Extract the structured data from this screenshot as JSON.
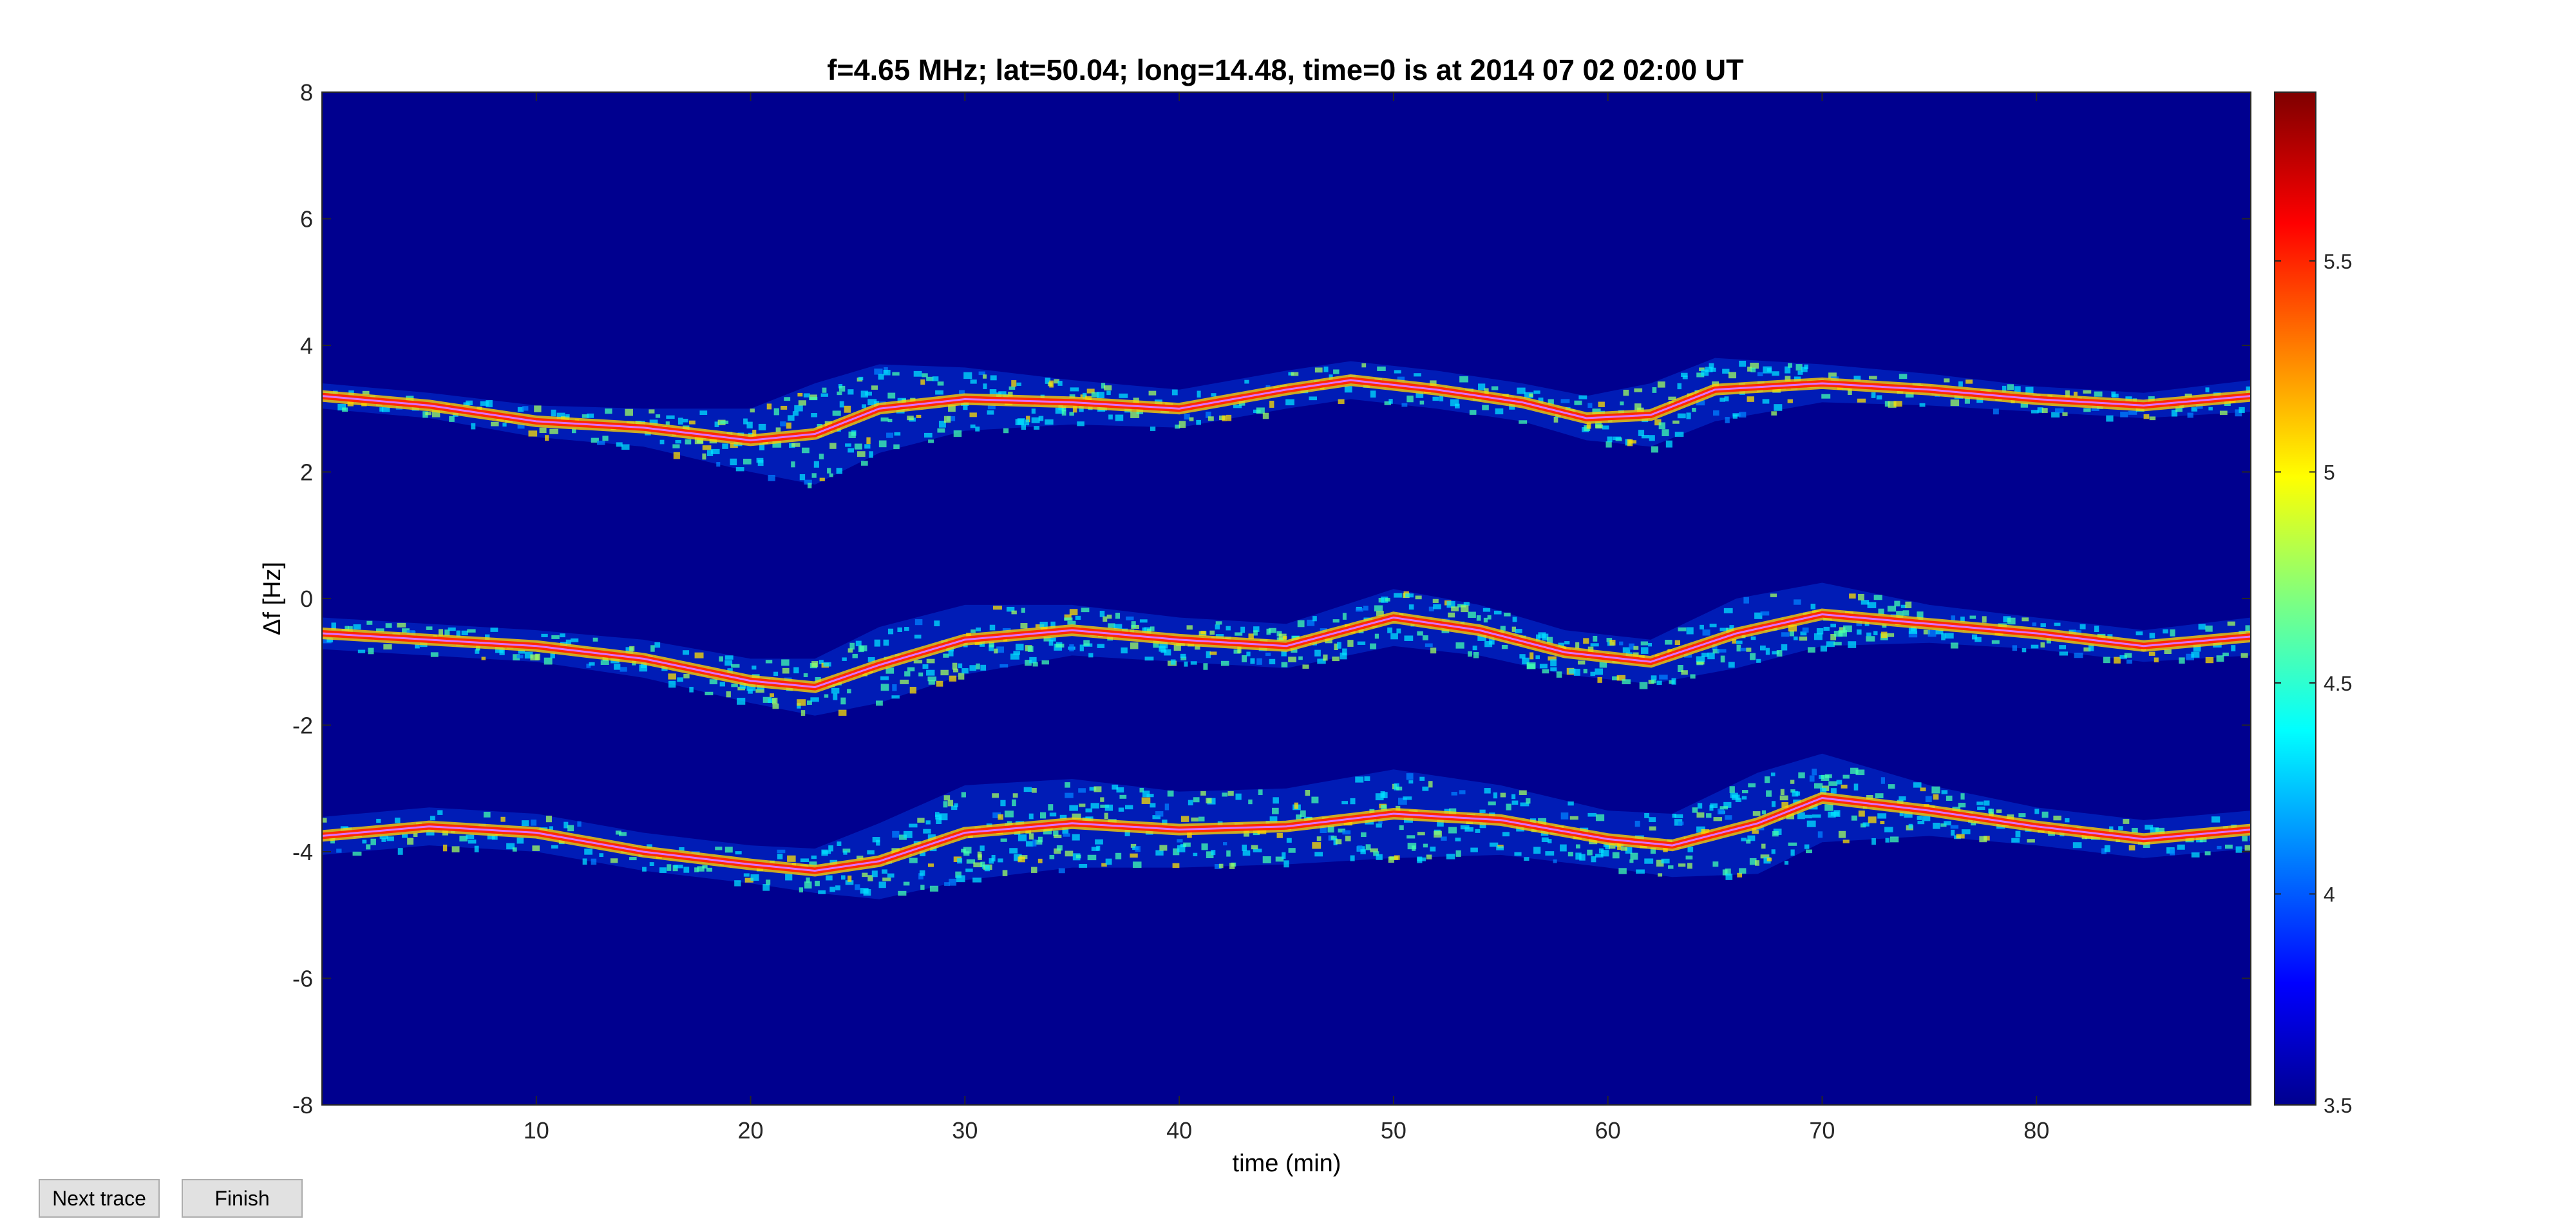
{
  "chart_data": {
    "type": "heatmap",
    "title": "f=4.65 MHz;  lat=50.04; long=14.48, time=0 is at 2014 07 02 02:00 UT",
    "xlabel": "time (min)",
    "ylabel": "Δf [Hz]",
    "xlim": [
      0,
      90
    ],
    "ylim": [
      -8,
      8
    ],
    "x_ticks": [
      10,
      20,
      30,
      40,
      50,
      60,
      70,
      80
    ],
    "y_ticks": [
      8,
      6,
      4,
      2,
      0,
      -2,
      -4,
      -6,
      -8
    ],
    "colorbar": {
      "range": [
        3.5,
        5.9
      ],
      "ticks": [
        "5.5",
        "5",
        "4.5",
        "4",
        "3.5"
      ],
      "colormap": "jet"
    },
    "background_color": "#00008f",
    "grid": false,
    "series": [
      {
        "traced_line": true,
        "x": [
          0,
          5,
          10,
          15,
          20,
          23,
          26,
          30,
          35,
          40,
          45,
          48,
          52,
          56,
          59,
          62,
          65,
          70,
          75,
          80,
          85,
          90
        ],
        "y": [
          3.2,
          3.05,
          2.8,
          2.7,
          2.5,
          2.6,
          3.0,
          3.15,
          3.1,
          3.0,
          3.3,
          3.45,
          3.3,
          3.1,
          2.85,
          2.9,
          3.3,
          3.4,
          3.3,
          3.15,
          3.05,
          3.2
        ],
        "spread": [
          0.2,
          0.2,
          0.25,
          0.3,
          0.5,
          0.8,
          0.7,
          0.5,
          0.35,
          0.3,
          0.3,
          0.3,
          0.3,
          0.3,
          0.35,
          0.5,
          0.5,
          0.3,
          0.25,
          0.2,
          0.2,
          0.25
        ]
      },
      {
        "traced_line": true,
        "x": [
          0,
          5,
          10,
          15,
          20,
          23,
          26,
          30,
          35,
          40,
          45,
          50,
          54,
          58,
          62,
          66,
          70,
          75,
          80,
          85,
          90
        ],
        "y": [
          -0.55,
          -0.65,
          -0.75,
          -0.95,
          -1.3,
          -1.4,
          -1.05,
          -0.65,
          -0.5,
          -0.65,
          -0.75,
          -0.3,
          -0.5,
          -0.85,
          -1.0,
          -0.55,
          -0.25,
          -0.4,
          -0.55,
          -0.75,
          -0.6
        ],
        "spread": [
          0.25,
          0.25,
          0.25,
          0.3,
          0.35,
          0.45,
          0.6,
          0.55,
          0.4,
          0.35,
          0.35,
          0.45,
          0.4,
          0.35,
          0.35,
          0.55,
          0.5,
          0.3,
          0.25,
          0.25,
          0.3
        ]
      },
      {
        "traced_line": true,
        "x": [
          0,
          5,
          10,
          15,
          20,
          23,
          26,
          30,
          35,
          40,
          45,
          50,
          55,
          60,
          63,
          67,
          70,
          75,
          80,
          85,
          90
        ],
        "y": [
          -3.75,
          -3.6,
          -3.7,
          -4.0,
          -4.2,
          -4.3,
          -4.15,
          -3.7,
          -3.55,
          -3.65,
          -3.6,
          -3.4,
          -3.5,
          -3.8,
          -3.9,
          -3.55,
          -3.15,
          -3.35,
          -3.6,
          -3.8,
          -3.65
        ],
        "spread": [
          0.3,
          0.3,
          0.3,
          0.3,
          0.3,
          0.35,
          0.6,
          0.75,
          0.7,
          0.6,
          0.6,
          0.7,
          0.55,
          0.45,
          0.5,
          0.8,
          0.7,
          0.4,
          0.3,
          0.3,
          0.3
        ]
      }
    ]
  },
  "buttons": {
    "next_trace": "Next trace",
    "finish": "Finish"
  }
}
